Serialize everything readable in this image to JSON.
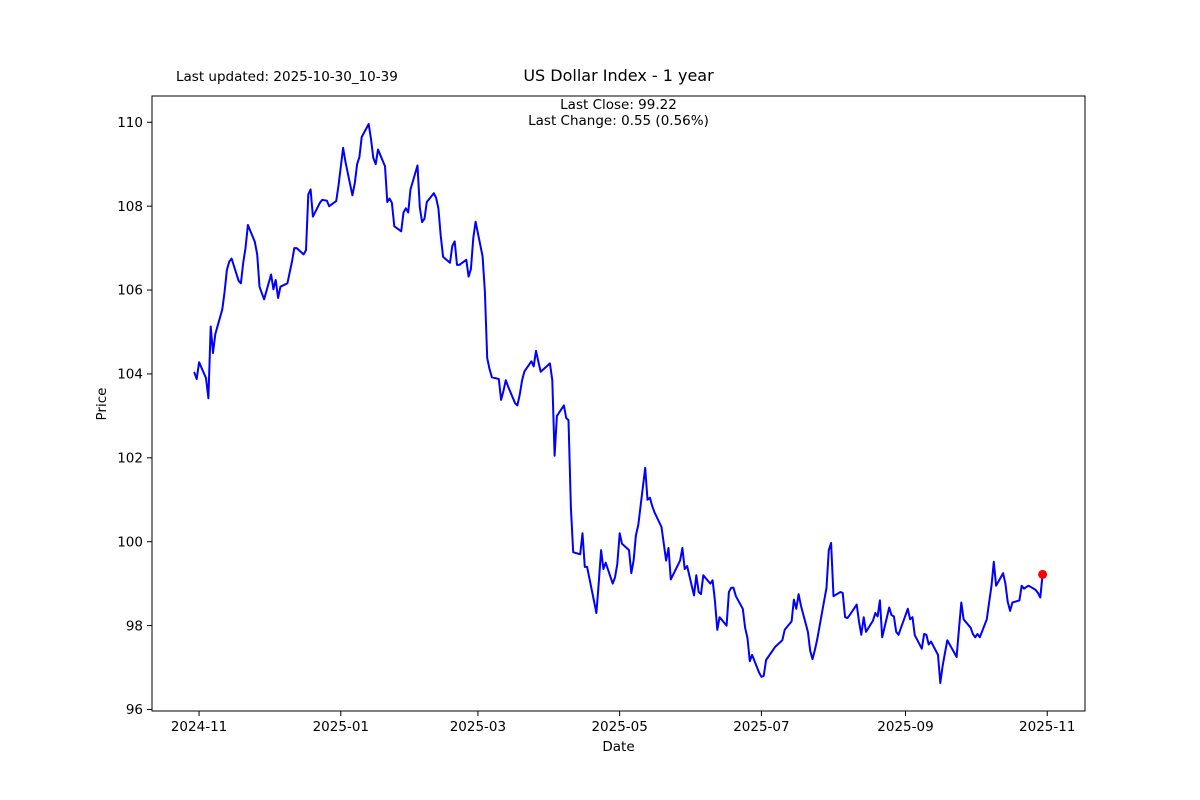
{
  "header": {
    "last_updated": "Last updated: 2025-10-30_10-39",
    "title": "US Dollar Index - 1 year",
    "annotation_line1": "Last Close: 99.22",
    "annotation_line2": "Last Change: 0.55 (0.56%)"
  },
  "axes": {
    "x_label": "Date",
    "y_label": "Price",
    "x_ticks": [
      "2024-11",
      "2025-01",
      "2025-03",
      "2025-05",
      "2025-07",
      "2025-09",
      "2025-11"
    ],
    "y_ticks": [
      96,
      98,
      100,
      102,
      104,
      106,
      108,
      110
    ]
  },
  "chart_data": {
    "type": "line",
    "title": "US Dollar Index - 1 year",
    "xlabel": "Date",
    "ylabel": "Price",
    "legend": "none",
    "grid": false,
    "line_color": "#0000ff",
    "marker_color": "#ff0000",
    "last_close": 99.22,
    "last_change": "0.55 (0.56%)",
    "x_range": [
      "2024-10-30",
      "2025-10-30"
    ],
    "y_tick_range": [
      96,
      110
    ],
    "axis_margin_frac": 0.05,
    "points": [
      [
        "2024-10-30",
        104.03
      ],
      [
        "2024-10-31",
        103.88
      ],
      [
        "2024-11-01",
        104.28
      ],
      [
        "2024-11-04",
        103.9
      ],
      [
        "2024-11-05",
        103.42
      ],
      [
        "2024-11-06",
        105.13
      ],
      [
        "2024-11-07",
        104.5
      ],
      [
        "2024-11-08",
        104.95
      ],
      [
        "2024-11-11",
        105.54
      ],
      [
        "2024-11-12",
        105.96
      ],
      [
        "2024-11-13",
        106.48
      ],
      [
        "2024-11-14",
        106.68
      ],
      [
        "2024-11-15",
        106.75
      ],
      [
        "2024-11-18",
        106.22
      ],
      [
        "2024-11-19",
        106.16
      ],
      [
        "2024-11-20",
        106.65
      ],
      [
        "2024-11-21",
        107.0
      ],
      [
        "2024-11-22",
        107.55
      ],
      [
        "2024-11-25",
        107.15
      ],
      [
        "2024-11-26",
        106.85
      ],
      [
        "2024-11-27",
        106.08
      ],
      [
        "2024-11-29",
        105.78
      ],
      [
        "2024-12-02",
        106.37
      ],
      [
        "2024-12-03",
        106.02
      ],
      [
        "2024-12-04",
        106.24
      ],
      [
        "2024-12-05",
        105.81
      ],
      [
        "2024-12-06",
        106.08
      ],
      [
        "2024-12-09",
        106.16
      ],
      [
        "2024-12-10",
        106.42
      ],
      [
        "2024-12-11",
        106.68
      ],
      [
        "2024-12-12",
        107.0
      ],
      [
        "2024-12-13",
        107.0
      ],
      [
        "2024-12-16",
        106.85
      ],
      [
        "2024-12-17",
        106.95
      ],
      [
        "2024-12-18",
        108.28
      ],
      [
        "2024-12-19",
        108.4
      ],
      [
        "2024-12-20",
        107.75
      ],
      [
        "2024-12-23",
        108.08
      ],
      [
        "2024-12-24",
        108.15
      ],
      [
        "2024-12-26",
        108.13
      ],
      [
        "2024-12-27",
        108.0
      ],
      [
        "2024-12-30",
        108.12
      ],
      [
        "2024-12-31",
        108.49
      ],
      [
        "2025-01-02",
        109.39
      ],
      [
        "2025-01-03",
        109.05
      ],
      [
        "2025-01-06",
        108.26
      ],
      [
        "2025-01-07",
        108.55
      ],
      [
        "2025-01-08",
        109.0
      ],
      [
        "2025-01-09",
        109.17
      ],
      [
        "2025-01-10",
        109.65
      ],
      [
        "2025-01-13",
        109.96
      ],
      [
        "2025-01-14",
        109.6
      ],
      [
        "2025-01-15",
        109.15
      ],
      [
        "2025-01-16",
        109.0
      ],
      [
        "2025-01-17",
        109.35
      ],
      [
        "2025-01-20",
        108.95
      ],
      [
        "2025-01-21",
        108.1
      ],
      [
        "2025-01-22",
        108.18
      ],
      [
        "2025-01-23",
        108.08
      ],
      [
        "2025-01-24",
        107.52
      ],
      [
        "2025-01-27",
        107.4
      ],
      [
        "2025-01-28",
        107.85
      ],
      [
        "2025-01-29",
        107.95
      ],
      [
        "2025-01-30",
        107.85
      ],
      [
        "2025-01-31",
        108.4
      ],
      [
        "2025-02-03",
        108.97
      ],
      [
        "2025-02-04",
        107.97
      ],
      [
        "2025-02-05",
        107.62
      ],
      [
        "2025-02-06",
        107.7
      ],
      [
        "2025-02-07",
        108.1
      ],
      [
        "2025-02-10",
        108.31
      ],
      [
        "2025-02-11",
        108.2
      ],
      [
        "2025-02-12",
        107.95
      ],
      [
        "2025-02-13",
        107.3
      ],
      [
        "2025-02-14",
        106.79
      ],
      [
        "2025-02-17",
        106.65
      ],
      [
        "2025-02-18",
        107.05
      ],
      [
        "2025-02-19",
        107.16
      ],
      [
        "2025-02-20",
        106.6
      ],
      [
        "2025-02-21",
        106.6
      ],
      [
        "2025-02-24",
        106.72
      ],
      [
        "2025-02-25",
        106.32
      ],
      [
        "2025-02-26",
        106.5
      ],
      [
        "2025-02-27",
        107.24
      ],
      [
        "2025-02-28",
        107.63
      ],
      [
        "2025-03-03",
        106.8
      ],
      [
        "2025-03-04",
        105.95
      ],
      [
        "2025-03-05",
        104.38
      ],
      [
        "2025-03-06",
        104.12
      ],
      [
        "2025-03-07",
        103.92
      ],
      [
        "2025-03-10",
        103.88
      ],
      [
        "2025-03-11",
        103.38
      ],
      [
        "2025-03-12",
        103.6
      ],
      [
        "2025-03-13",
        103.85
      ],
      [
        "2025-03-14",
        103.7
      ],
      [
        "2025-03-17",
        103.3
      ],
      [
        "2025-03-18",
        103.25
      ],
      [
        "2025-03-19",
        103.5
      ],
      [
        "2025-03-20",
        103.85
      ],
      [
        "2025-03-21",
        104.06
      ],
      [
        "2025-03-24",
        104.3
      ],
      [
        "2025-03-25",
        104.18
      ],
      [
        "2025-03-26",
        104.55
      ],
      [
        "2025-03-27",
        104.3
      ],
      [
        "2025-03-28",
        104.05
      ],
      [
        "2025-03-31",
        104.2
      ],
      [
        "2025-04-01",
        104.25
      ],
      [
        "2025-04-02",
        103.85
      ],
      [
        "2025-04-03",
        102.05
      ],
      [
        "2025-04-04",
        103.0
      ],
      [
        "2025-04-07",
        103.25
      ],
      [
        "2025-04-08",
        102.95
      ],
      [
        "2025-04-09",
        102.9
      ],
      [
        "2025-04-10",
        100.8
      ],
      [
        "2025-04-11",
        99.75
      ],
      [
        "2025-04-14",
        99.7
      ],
      [
        "2025-04-15",
        100.2
      ],
      [
        "2025-04-16",
        99.4
      ],
      [
        "2025-04-17",
        99.4
      ],
      [
        "2025-04-21",
        98.3
      ],
      [
        "2025-04-22",
        99.0
      ],
      [
        "2025-04-23",
        99.8
      ],
      [
        "2025-04-24",
        99.35
      ],
      [
        "2025-04-25",
        99.5
      ],
      [
        "2025-04-28",
        99.0
      ],
      [
        "2025-04-29",
        99.15
      ],
      [
        "2025-04-30",
        99.47
      ],
      [
        "2025-05-01",
        100.2
      ],
      [
        "2025-05-02",
        99.95
      ],
      [
        "2025-05-05",
        99.8
      ],
      [
        "2025-05-06",
        99.25
      ],
      [
        "2025-05-07",
        99.55
      ],
      [
        "2025-05-08",
        100.15
      ],
      [
        "2025-05-09",
        100.4
      ],
      [
        "2025-05-12",
        101.76
      ],
      [
        "2025-05-13",
        101.0
      ],
      [
        "2025-05-14",
        101.05
      ],
      [
        "2025-05-15",
        100.85
      ],
      [
        "2025-05-16",
        100.7
      ],
      [
        "2025-05-19",
        100.35
      ],
      [
        "2025-05-20",
        99.95
      ],
      [
        "2025-05-21",
        99.55
      ],
      [
        "2025-05-22",
        99.85
      ],
      [
        "2025-05-23",
        99.1
      ],
      [
        "2025-05-27",
        99.55
      ],
      [
        "2025-05-28",
        99.85
      ],
      [
        "2025-05-29",
        99.35
      ],
      [
        "2025-05-30",
        99.42
      ],
      [
        "2025-06-02",
        98.72
      ],
      [
        "2025-06-03",
        99.2
      ],
      [
        "2025-06-04",
        98.8
      ],
      [
        "2025-06-05",
        98.75
      ],
      [
        "2025-06-06",
        99.2
      ],
      [
        "2025-06-09",
        99.0
      ],
      [
        "2025-06-10",
        99.08
      ],
      [
        "2025-06-11",
        98.6
      ],
      [
        "2025-06-12",
        97.9
      ],
      [
        "2025-06-13",
        98.2
      ],
      [
        "2025-06-16",
        98.0
      ],
      [
        "2025-06-17",
        98.8
      ],
      [
        "2025-06-18",
        98.9
      ],
      [
        "2025-06-19",
        98.9
      ],
      [
        "2025-06-20",
        98.7
      ],
      [
        "2025-06-23",
        98.4
      ],
      [
        "2025-06-24",
        97.95
      ],
      [
        "2025-06-25",
        97.7
      ],
      [
        "2025-06-26",
        97.15
      ],
      [
        "2025-06-27",
        97.3
      ],
      [
        "2025-06-30",
        96.88
      ],
      [
        "2025-07-01",
        96.78
      ],
      [
        "2025-07-02",
        96.8
      ],
      [
        "2025-07-03",
        97.18
      ],
      [
        "2025-07-07",
        97.5
      ],
      [
        "2025-07-08",
        97.55
      ],
      [
        "2025-07-09",
        97.6
      ],
      [
        "2025-07-10",
        97.65
      ],
      [
        "2025-07-11",
        97.9
      ],
      [
        "2025-07-14",
        98.1
      ],
      [
        "2025-07-15",
        98.62
      ],
      [
        "2025-07-16",
        98.4
      ],
      [
        "2025-07-17",
        98.75
      ],
      [
        "2025-07-18",
        98.48
      ],
      [
        "2025-07-21",
        97.85
      ],
      [
        "2025-07-22",
        97.4
      ],
      [
        "2025-07-23",
        97.2
      ],
      [
        "2025-07-24",
        97.42
      ],
      [
        "2025-07-25",
        97.67
      ],
      [
        "2025-07-28",
        98.6
      ],
      [
        "2025-07-29",
        98.9
      ],
      [
        "2025-07-30",
        99.8
      ],
      [
        "2025-07-31",
        99.97
      ],
      [
        "2025-08-01",
        98.7
      ],
      [
        "2025-08-04",
        98.8
      ],
      [
        "2025-08-05",
        98.78
      ],
      [
        "2025-08-06",
        98.2
      ],
      [
        "2025-08-07",
        98.18
      ],
      [
        "2025-08-08",
        98.25
      ],
      [
        "2025-08-11",
        98.5
      ],
      [
        "2025-08-12",
        98.1
      ],
      [
        "2025-08-13",
        97.78
      ],
      [
        "2025-08-14",
        98.2
      ],
      [
        "2025-08-15",
        97.85
      ],
      [
        "2025-08-18",
        98.12
      ],
      [
        "2025-08-19",
        98.3
      ],
      [
        "2025-08-20",
        98.22
      ],
      [
        "2025-08-21",
        98.6
      ],
      [
        "2025-08-22",
        97.72
      ],
      [
        "2025-08-25",
        98.43
      ],
      [
        "2025-08-26",
        98.25
      ],
      [
        "2025-08-27",
        98.22
      ],
      [
        "2025-08-28",
        97.85
      ],
      [
        "2025-08-29",
        97.78
      ],
      [
        "2025-09-02",
        98.4
      ],
      [
        "2025-09-03",
        98.15
      ],
      [
        "2025-09-04",
        98.2
      ],
      [
        "2025-09-05",
        97.77
      ],
      [
        "2025-09-08",
        97.45
      ],
      [
        "2025-09-09",
        97.8
      ],
      [
        "2025-09-10",
        97.78
      ],
      [
        "2025-09-11",
        97.55
      ],
      [
        "2025-09-12",
        97.62
      ],
      [
        "2025-09-15",
        97.3
      ],
      [
        "2025-09-16",
        96.63
      ],
      [
        "2025-09-17",
        97.05
      ],
      [
        "2025-09-18",
        97.35
      ],
      [
        "2025-09-19",
        97.65
      ],
      [
        "2025-09-22",
        97.35
      ],
      [
        "2025-09-23",
        97.25
      ],
      [
        "2025-09-24",
        97.9
      ],
      [
        "2025-09-25",
        98.55
      ],
      [
        "2025-09-26",
        98.15
      ],
      [
        "2025-09-29",
        97.95
      ],
      [
        "2025-09-30",
        97.8
      ],
      [
        "2025-10-01",
        97.72
      ],
      [
        "2025-10-02",
        97.8
      ],
      [
        "2025-10-03",
        97.72
      ],
      [
        "2025-10-06",
        98.15
      ],
      [
        "2025-10-07",
        98.55
      ],
      [
        "2025-10-08",
        98.95
      ],
      [
        "2025-10-09",
        99.52
      ],
      [
        "2025-10-10",
        98.95
      ],
      [
        "2025-10-13",
        99.25
      ],
      [
        "2025-10-14",
        99.0
      ],
      [
        "2025-10-15",
        98.57
      ],
      [
        "2025-10-16",
        98.35
      ],
      [
        "2025-10-17",
        98.55
      ],
      [
        "2025-10-20",
        98.6
      ],
      [
        "2025-10-21",
        98.95
      ],
      [
        "2025-10-22",
        98.88
      ],
      [
        "2025-10-23",
        98.92
      ],
      [
        "2025-10-24",
        98.95
      ],
      [
        "2025-10-27",
        98.85
      ],
      [
        "2025-10-28",
        98.78
      ],
      [
        "2025-10-29",
        98.67
      ],
      [
        "2025-10-30",
        99.22
      ]
    ]
  }
}
